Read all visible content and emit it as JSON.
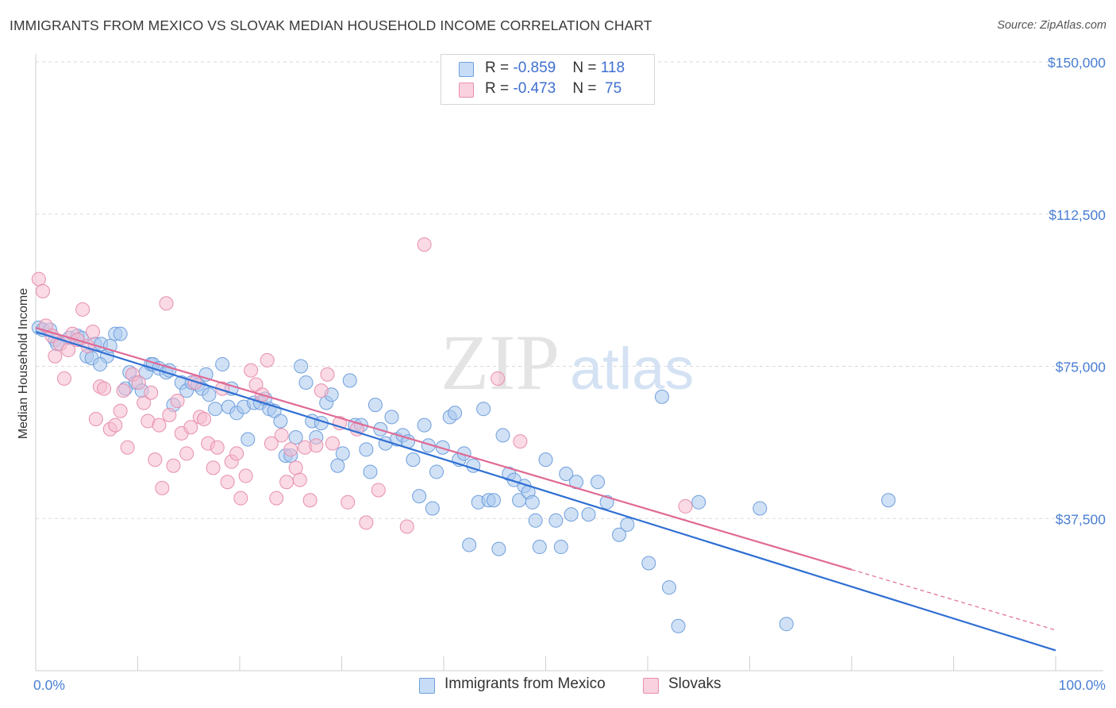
{
  "header": {
    "title": "IMMIGRANTS FROM MEXICO VS SLOVAK MEDIAN HOUSEHOLD INCOME CORRELATION CHART",
    "source": "Source: ZipAtlas.com"
  },
  "watermark": {
    "zip": "ZIP",
    "atlas": "atlas"
  },
  "legend_top": {
    "rows": [
      {
        "r_label": "R = ",
        "r_value": "-0.859",
        "n_label": "N = ",
        "n_value": "118",
        "color": "#a8c8f0"
      },
      {
        "r_label": "R = ",
        "r_value": "-0.473",
        "n_label": "N = ",
        "n_value": "75",
        "color": "#f5b7cb"
      }
    ]
  },
  "legend_bottom": [
    {
      "label": "Immigrants from Mexico",
      "color": "#a8c8f0"
    },
    {
      "label": "Slovaks",
      "color": "#f5b7cb"
    }
  ],
  "colors": {
    "blue_fill": "#aac9ef",
    "blue_stroke": "#6f9fdc",
    "blue_line": "#2f6fd3",
    "pink_fill": "#f5bcd0",
    "pink_stroke": "#e78fae",
    "pink_line": "#e06a95",
    "grid": "#d9d9d9",
    "tick_text": "#4a7fd4"
  },
  "chart_data": {
    "type": "scatter",
    "title": "IMMIGRANTS FROM MEXICO VS SLOVAK MEDIAN HOUSEHOLD INCOME CORRELATION CHART",
    "xlabel": "",
    "ylabel": "Median Household Income",
    "xlim": [
      0,
      100
    ],
    "ylim": [
      0,
      150000
    ],
    "x_tick_labels": [
      "0.0%",
      "100.0%"
    ],
    "y_ticks": [
      37500,
      75000,
      112500,
      150000
    ],
    "y_tick_labels": [
      "$37,500",
      "$75,000",
      "$112,500",
      "$150,000"
    ],
    "grid": true,
    "legend_position": "bottom",
    "series": [
      {
        "name": "Immigrants from Mexico",
        "trend": {
          "x": [
            0,
            100
          ],
          "y": [
            83500,
            5000
          ]
        },
        "points": [
          [
            0.3,
            84500
          ],
          [
            0.7,
            84000
          ],
          [
            1.4,
            84000
          ],
          [
            1.9,
            81500
          ],
          [
            2.1,
            80500
          ],
          [
            3.3,
            82000
          ],
          [
            4.1,
            82500
          ],
          [
            4.5,
            82000
          ],
          [
            5.0,
            77500
          ],
          [
            5.5,
            77000
          ],
          [
            5.8,
            80500
          ],
          [
            6.4,
            80500
          ],
          [
            7.0,
            77500
          ],
          [
            7.3,
            80000
          ],
          [
            7.8,
            83000
          ],
          [
            8.3,
            83000
          ],
          [
            8.8,
            69500
          ],
          [
            9.2,
            73500
          ],
          [
            9.8,
            71000
          ],
          [
            10.4,
            69000
          ],
          [
            10.8,
            73500
          ],
          [
            11.3,
            75500
          ],
          [
            11.5,
            75500
          ],
          [
            12.1,
            74500
          ],
          [
            12.8,
            73500
          ],
          [
            13.1,
            74000
          ],
          [
            13.5,
            65500
          ],
          [
            14.3,
            71000
          ],
          [
            14.8,
            69000
          ],
          [
            15.3,
            71000
          ],
          [
            15.9,
            70500
          ],
          [
            16.3,
            69500
          ],
          [
            16.7,
            73000
          ],
          [
            17.0,
            68000
          ],
          [
            17.6,
            64500
          ],
          [
            18.3,
            75500
          ],
          [
            18.9,
            65000
          ],
          [
            19.2,
            69500
          ],
          [
            19.7,
            63500
          ],
          [
            20.4,
            65000
          ],
          [
            20.8,
            57000
          ],
          [
            21.4,
            66000
          ],
          [
            22.0,
            66000
          ],
          [
            22.5,
            67000
          ],
          [
            22.9,
            64500
          ],
          [
            23.4,
            64000
          ],
          [
            24.0,
            61500
          ],
          [
            24.5,
            53000
          ],
          [
            25.0,
            53000
          ],
          [
            25.5,
            57500
          ],
          [
            26.0,
            75000
          ],
          [
            26.5,
            71000
          ],
          [
            27.1,
            61500
          ],
          [
            27.5,
            57500
          ],
          [
            28.0,
            61000
          ],
          [
            28.5,
            66000
          ],
          [
            29.0,
            68000
          ],
          [
            29.6,
            50500
          ],
          [
            30.1,
            53500
          ],
          [
            30.8,
            71500
          ],
          [
            31.3,
            60500
          ],
          [
            31.9,
            60500
          ],
          [
            32.4,
            54500
          ],
          [
            32.8,
            49000
          ],
          [
            33.3,
            65500
          ],
          [
            33.8,
            59500
          ],
          [
            34.3,
            56000
          ],
          [
            34.9,
            62500
          ],
          [
            35.4,
            57000
          ],
          [
            36.0,
            58000
          ],
          [
            36.5,
            56500
          ],
          [
            37.0,
            52000
          ],
          [
            37.6,
            43000
          ],
          [
            38.1,
            60500
          ],
          [
            38.5,
            55500
          ],
          [
            38.9,
            40000
          ],
          [
            39.3,
            49000
          ],
          [
            39.9,
            55000
          ],
          [
            40.6,
            62500
          ],
          [
            41.1,
            63500
          ],
          [
            41.5,
            52000
          ],
          [
            42.0,
            53500
          ],
          [
            42.5,
            31000
          ],
          [
            42.9,
            50500
          ],
          [
            43.4,
            41500
          ],
          [
            43.9,
            64500
          ],
          [
            44.4,
            42000
          ],
          [
            44.9,
            42000
          ],
          [
            45.4,
            30000
          ],
          [
            45.8,
            58000
          ],
          [
            46.4,
            48500
          ],
          [
            46.9,
            47000
          ],
          [
            47.4,
            42000
          ],
          [
            47.9,
            45500
          ],
          [
            48.3,
            44000
          ],
          [
            48.7,
            41500
          ],
          [
            49.0,
            37000
          ],
          [
            49.4,
            30500
          ],
          [
            50.0,
            52000
          ],
          [
            51.0,
            37000
          ],
          [
            51.5,
            30500
          ],
          [
            52.0,
            48500
          ],
          [
            52.5,
            38500
          ],
          [
            53.0,
            46500
          ],
          [
            54.2,
            38500
          ],
          [
            55.1,
            46500
          ],
          [
            56.0,
            41500
          ],
          [
            57.2,
            33500
          ],
          [
            58.0,
            36000
          ],
          [
            60.1,
            26500
          ],
          [
            61.4,
            67500
          ],
          [
            62.1,
            20500
          ],
          [
            63.0,
            11000
          ],
          [
            65.0,
            41500
          ],
          [
            71.0,
            40000
          ],
          [
            73.6,
            11500
          ],
          [
            83.6,
            42000
          ],
          [
            6.3,
            75500
          ]
        ]
      },
      {
        "name": "Slovaks",
        "trend": {
          "x": [
            0,
            100
          ],
          "y": [
            84500,
            10000
          ]
        },
        "points": [
          [
            0.3,
            96500
          ],
          [
            0.7,
            93500
          ],
          [
            1.0,
            85000
          ],
          [
            1.6,
            82500
          ],
          [
            1.9,
            77500
          ],
          [
            2.4,
            80500
          ],
          [
            2.8,
            72000
          ],
          [
            3.2,
            79000
          ],
          [
            3.6,
            83000
          ],
          [
            4.1,
            81500
          ],
          [
            4.6,
            89000
          ],
          [
            5.1,
            80000
          ],
          [
            5.6,
            83500
          ],
          [
            5.9,
            62000
          ],
          [
            6.3,
            70000
          ],
          [
            6.7,
            69500
          ],
          [
            7.3,
            59500
          ],
          [
            7.8,
            60500
          ],
          [
            8.3,
            64000
          ],
          [
            8.6,
            69000
          ],
          [
            9.0,
            55000
          ],
          [
            9.5,
            73000
          ],
          [
            10.1,
            71000
          ],
          [
            10.6,
            66000
          ],
          [
            11.0,
            61500
          ],
          [
            11.3,
            68500
          ],
          [
            11.7,
            52000
          ],
          [
            12.1,
            60500
          ],
          [
            12.4,
            45000
          ],
          [
            12.8,
            90500
          ],
          [
            13.1,
            63000
          ],
          [
            13.5,
            50500
          ],
          [
            13.9,
            66500
          ],
          [
            14.3,
            58500
          ],
          [
            14.8,
            53500
          ],
          [
            15.2,
            60000
          ],
          [
            15.6,
            71000
          ],
          [
            16.1,
            62500
          ],
          [
            16.5,
            62000
          ],
          [
            16.9,
            56000
          ],
          [
            17.4,
            50000
          ],
          [
            17.8,
            55000
          ],
          [
            18.3,
            69500
          ],
          [
            18.8,
            46500
          ],
          [
            19.2,
            51500
          ],
          [
            19.7,
            53500
          ],
          [
            20.1,
            42500
          ],
          [
            20.6,
            48000
          ],
          [
            21.1,
            74000
          ],
          [
            21.6,
            70500
          ],
          [
            22.2,
            68000
          ],
          [
            22.7,
            76500
          ],
          [
            23.1,
            56000
          ],
          [
            23.6,
            42500
          ],
          [
            24.1,
            58000
          ],
          [
            24.6,
            46500
          ],
          [
            25.0,
            54500
          ],
          [
            25.5,
            50000
          ],
          [
            25.9,
            47000
          ],
          [
            26.4,
            55000
          ],
          [
            26.9,
            42000
          ],
          [
            27.5,
            55500
          ],
          [
            28.0,
            69000
          ],
          [
            28.6,
            73000
          ],
          [
            29.1,
            56000
          ],
          [
            29.8,
            61000
          ],
          [
            30.6,
            41500
          ],
          [
            31.5,
            59500
          ],
          [
            32.4,
            36500
          ],
          [
            33.6,
            44500
          ],
          [
            36.4,
            35500
          ],
          [
            38.1,
            105000
          ],
          [
            45.3,
            72000
          ],
          [
            47.5,
            56500
          ],
          [
            63.7,
            40500
          ]
        ]
      }
    ]
  }
}
